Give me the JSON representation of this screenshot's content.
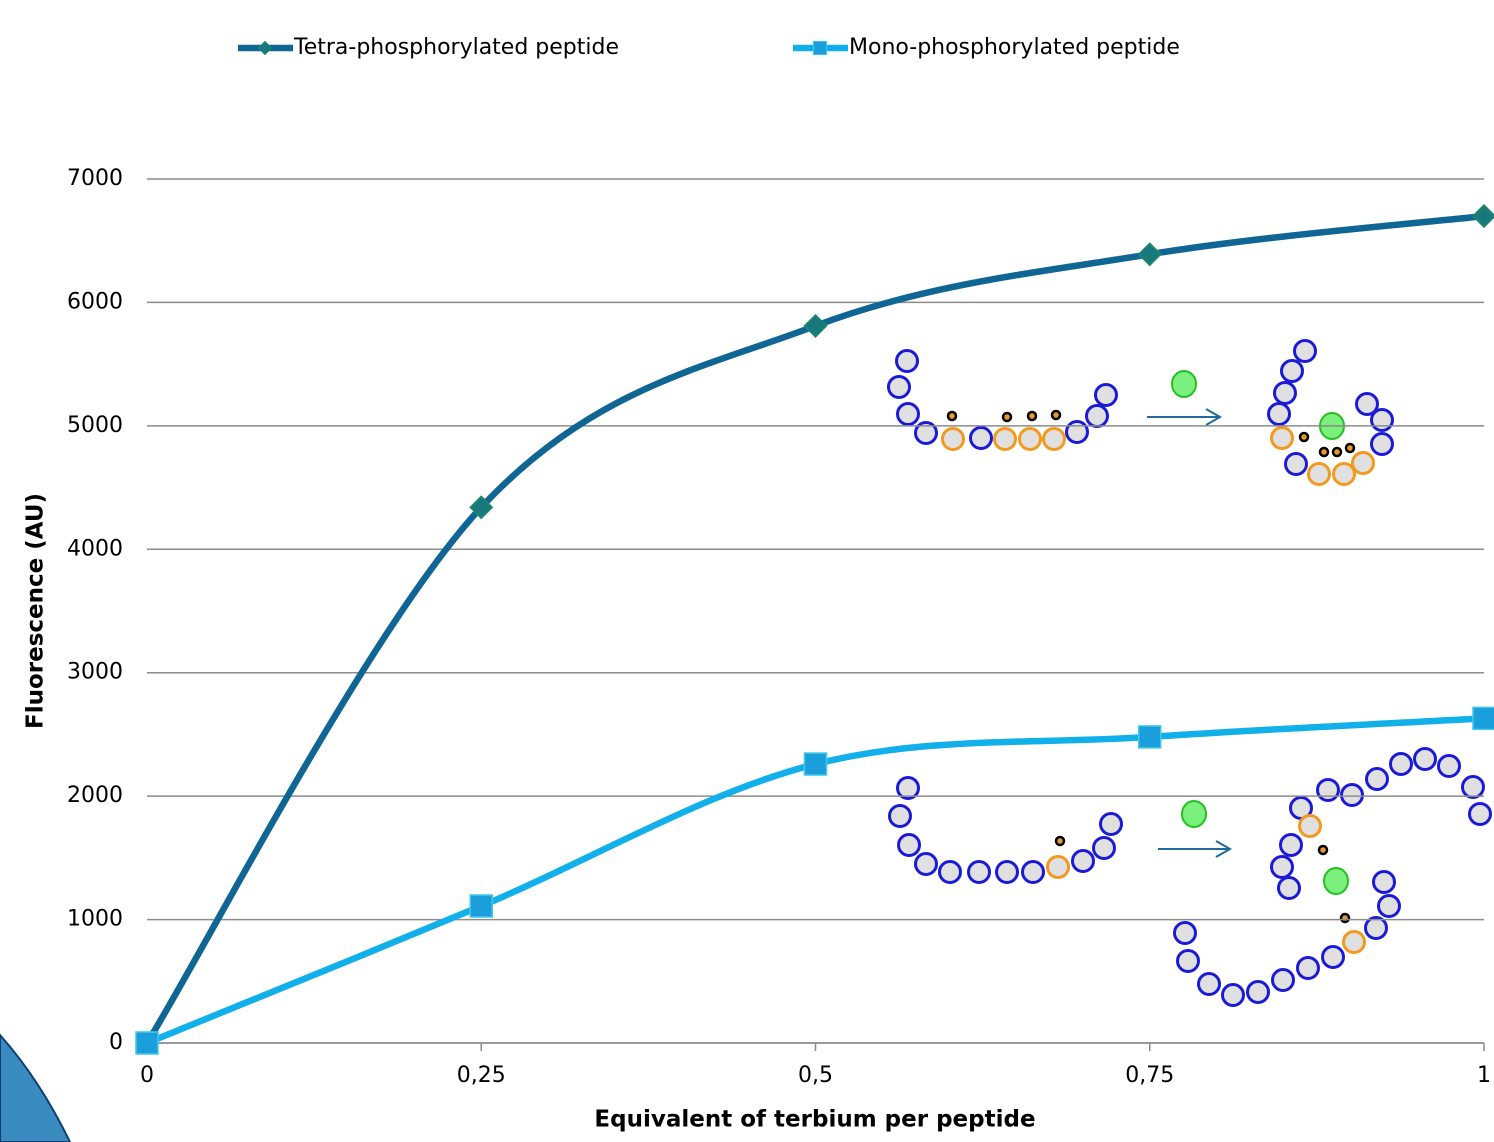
{
  "chart_data": {
    "type": "line",
    "x": [
      0,
      0.25,
      0.5,
      0.75,
      1
    ],
    "series": [
      {
        "name": "Tetra-phosphorylated peptide",
        "color": "#0f6694",
        "marker_color": "#17797c",
        "values": [
          0,
          4340,
          5810,
          6390,
          6700
        ]
      },
      {
        "name": "Mono-phosphorylated peptide",
        "color": "#12b0ea",
        "marker_color": "#1a9fdc",
        "values": [
          0,
          1110,
          2260,
          2480,
          2630
        ]
      }
    ],
    "xlim": [
      0,
      1
    ],
    "xticks": [
      0,
      {
        "value": 0.25,
        "label": "0,25"
      },
      {
        "value": 0.5,
        "label": "0,5"
      },
      {
        "value": 0.75,
        "label": "0,75"
      },
      1
    ],
    "ylim": [
      0,
      7000
    ],
    "yticks": [
      0,
      1000,
      2000,
      3000,
      4000,
      5000,
      6000,
      7000
    ],
    "xlabel": "Equivalent of terbium per peptide",
    "ylabel": "Fluorescence (AU)",
    "grid": true,
    "smooth": true
  }
}
